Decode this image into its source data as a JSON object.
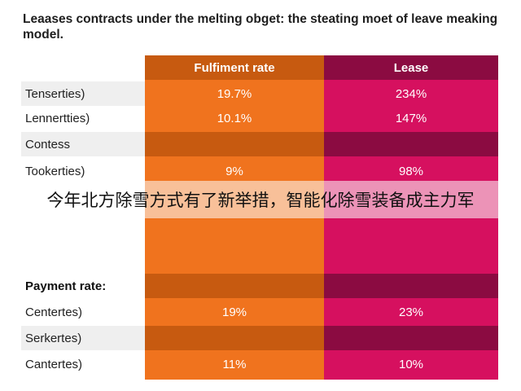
{
  "chart_data": {
    "type": "table",
    "title": "Leaases contracts under the melting obget: the steating moet of leave meaking model.",
    "columns": [
      "Fulfiment rate",
      "Lease"
    ],
    "sections": [
      {
        "name": "",
        "rows": [
          {
            "label": "Tenserties)",
            "values": [
              "19.7%",
              "234%"
            ]
          },
          {
            "label": "Lennertties)",
            "values": [
              "10.1%",
              "147%"
            ]
          },
          {
            "label": "Contess",
            "values": [
              "",
              ""
            ]
          },
          {
            "label": "Tookerties)",
            "values": [
              "9%",
              "98%"
            ]
          }
        ]
      },
      {
        "name": "Payment rate:",
        "rows": [
          {
            "label": "Centertes)",
            "values": [
              "19%",
              "23%"
            ]
          },
          {
            "label": "Serkertes)",
            "values": [
              "",
              ""
            ]
          },
          {
            "label": "Cantertes)",
            "values": [
              "11%",
              "10%"
            ]
          }
        ]
      }
    ]
  },
  "overlay_caption": "今年北方除雪方式有了新举措，智能化除雪装备成主力军",
  "colors": {
    "fulfil_light": "#f0731e",
    "fulfil_dark": "#c75a10",
    "lease_light": "#d6105f",
    "lease_dark": "#8b0b41",
    "label_shade": "#efefef"
  }
}
